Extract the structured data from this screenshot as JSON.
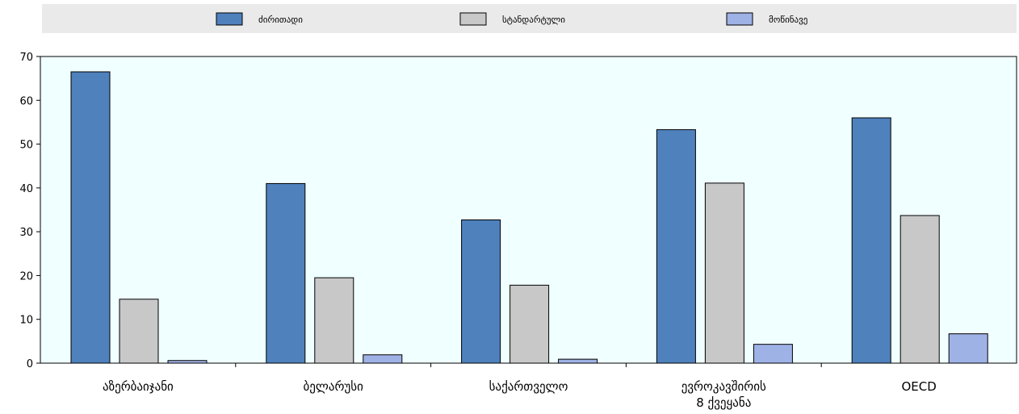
{
  "chart_data": {
    "type": "bar",
    "categories": [
      [
        "აზერბაიჯანი"
      ],
      [
        "ბელარუსი"
      ],
      [
        "საქართველო"
      ],
      [
        "ევროკავშირის",
        "8 ქვეყანა"
      ],
      [
        "OECD"
      ]
    ],
    "series": [
      {
        "name": "ძირითადი",
        "color": "#4f81bd",
        "values": [
          66.5,
          41,
          32.7,
          53.3,
          56
        ]
      },
      {
        "name": "სტანდარტული",
        "color": "#c8c8c8",
        "values": [
          14.6,
          19.5,
          17.8,
          41.1,
          33.7
        ]
      },
      {
        "name": "მოწინავე",
        "color": "#9fb2e6",
        "values": [
          0.6,
          1.9,
          0.9,
          4.3,
          6.7
        ]
      }
    ],
    "ylim": [
      0,
      70
    ],
    "yticks": [
      0,
      10,
      20,
      30,
      40,
      50,
      60,
      70
    ],
    "legend_position": "top",
    "plot_background": "#f0ffff",
    "legend_background": "#eaeaea",
    "grid": false
  }
}
